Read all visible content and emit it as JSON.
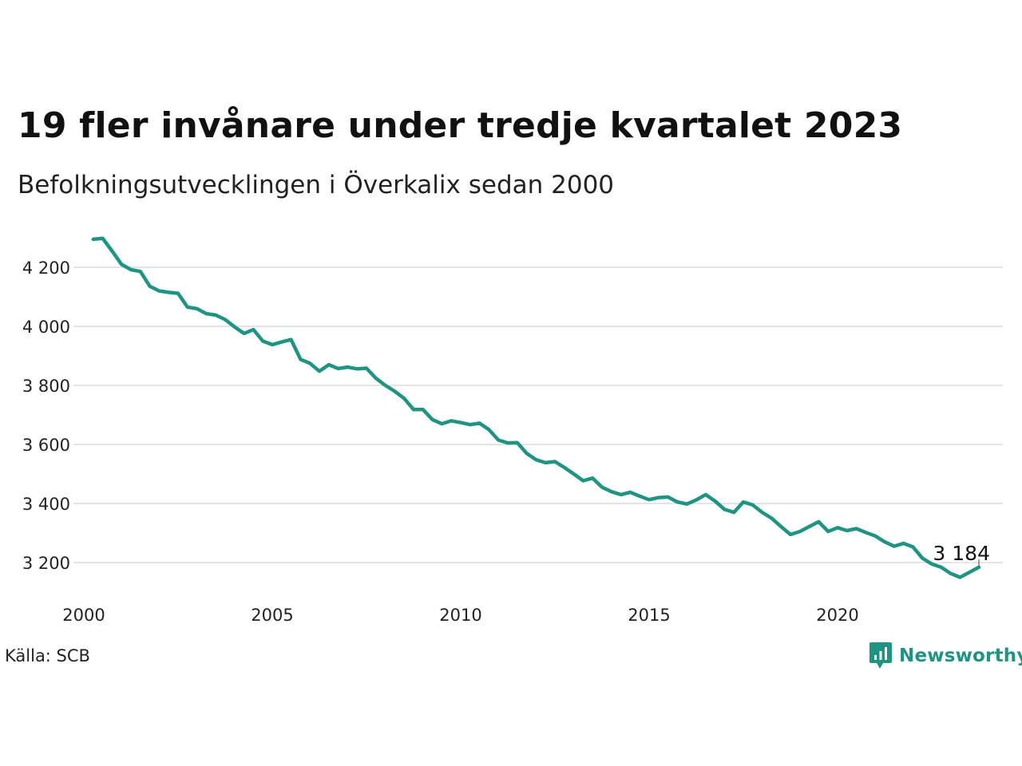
{
  "title": "19 fler invånare under tredje kvartalet 2023",
  "subtitle": "Befolkningsutvecklingen i Överkalix sedan 2000",
  "source": "Källa: SCB",
  "brand": {
    "name": "Newsworthy",
    "icon": "newsworthy-logo-icon",
    "color": "#1f9483"
  },
  "chart_data": {
    "type": "line",
    "color": "#1f9483",
    "grid_color": "#e3e3e3",
    "grid": true,
    "x_ticks": [
      "2000",
      "2005",
      "2010",
      "2015",
      "2020"
    ],
    "y_ticks": [
      "3 200",
      "3 400",
      "3 600",
      "3 800",
      "4 000",
      "4 200"
    ],
    "ylim": [
      3120,
      4310
    ],
    "end_label": "3 184",
    "x": [
      2000.25,
      2000.5,
      2000.75,
      2001.0,
      2001.25,
      2001.5,
      2001.75,
      2002.0,
      2002.25,
      2002.5,
      2002.75,
      2003.0,
      2003.25,
      2003.5,
      2003.75,
      2004.0,
      2004.25,
      2004.5,
      2004.75,
      2005.0,
      2005.25,
      2005.5,
      2005.75,
      2006.0,
      2006.25,
      2006.5,
      2006.75,
      2007.0,
      2007.25,
      2007.5,
      2007.75,
      2008.0,
      2008.25,
      2008.5,
      2008.75,
      2009.0,
      2009.25,
      2009.5,
      2009.75,
      2010.0,
      2010.25,
      2010.5,
      2010.75,
      2011.0,
      2011.25,
      2011.5,
      2011.75,
      2012.0,
      2012.25,
      2012.5,
      2012.75,
      2013.0,
      2013.25,
      2013.5,
      2013.75,
      2014.0,
      2014.25,
      2014.5,
      2014.75,
      2015.0,
      2015.25,
      2015.5,
      2015.75,
      2016.0,
      2016.25,
      2016.5,
      2016.75,
      2017.0,
      2017.25,
      2017.5,
      2017.75,
      2018.0,
      2018.25,
      2018.5,
      2018.75,
      2019.0,
      2019.25,
      2019.5,
      2019.75,
      2020.0,
      2020.25,
      2020.5,
      2020.75,
      2021.0,
      2021.25,
      2021.5,
      2021.75,
      2022.0,
      2022.25,
      2022.5,
      2022.75,
      2023.0,
      2023.25,
      2023.5,
      2023.75
    ],
    "values": [
      4295,
      4298,
      4255,
      4210,
      4192,
      4186,
      4136,
      4120,
      4115,
      4112,
      4065,
      4060,
      4043,
      4038,
      4023,
      3998,
      3976,
      3989,
      3950,
      3938,
      3947,
      3955,
      3888,
      3875,
      3848,
      3870,
      3857,
      3862,
      3856,
      3858,
      3824,
      3800,
      3780,
      3756,
      3718,
      3718,
      3684,
      3670,
      3680,
      3674,
      3667,
      3672,
      3650,
      3615,
      3605,
      3606,
      3570,
      3548,
      3538,
      3542,
      3522,
      3500,
      3477,
      3486,
      3455,
      3440,
      3430,
      3438,
      3425,
      3413,
      3420,
      3422,
      3405,
      3398,
      3412,
      3430,
      3408,
      3380,
      3370,
      3405,
      3395,
      3370,
      3350,
      3322,
      3295,
      3305,
      3322,
      3338,
      3305,
      3318,
      3308,
      3315,
      3302,
      3290,
      3270,
      3255,
      3265,
      3253,
      3215,
      3195,
      3184,
      3163,
      3150,
      3167,
      3184
    ]
  }
}
